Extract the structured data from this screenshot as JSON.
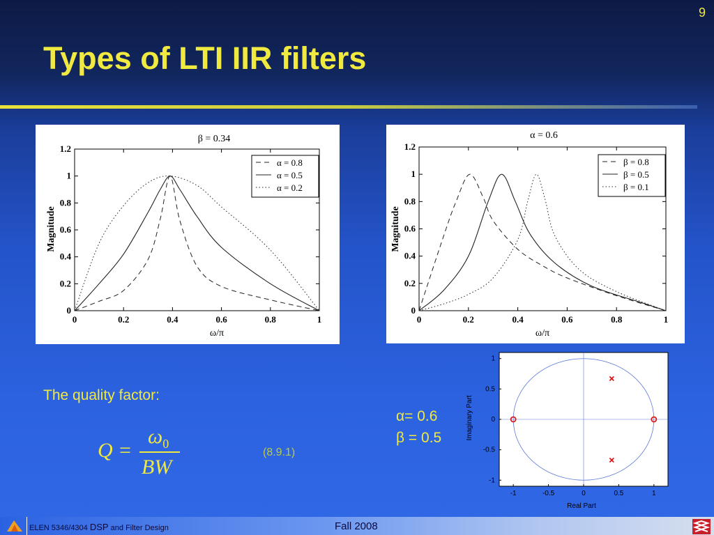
{
  "slide_number": "9",
  "title": "Types of LTI IIR filters",
  "quality_factor_label": "The quality factor:",
  "equation": {
    "lhs": "Q =",
    "numerator": "ω",
    "numerator_sub": "0",
    "denominator": "BW",
    "number": "(8.9.1)"
  },
  "params": {
    "alpha": "α= 0.6",
    "beta": "β = 0.5"
  },
  "footer": {
    "course": "ELEN 5346/4304",
    "dsp": "DSP",
    "rest": "and Filter Design",
    "term": "Fall 2008"
  },
  "colors": {
    "title": "#f0e940",
    "equation_number": "#b9cc3c",
    "pole_zero_marker": "#d81b1b",
    "unit_circle": "#5a78d8"
  },
  "chart_data": [
    {
      "type": "line",
      "title": "β = 0.34",
      "xlabel": "ω/π",
      "ylabel": "Magnitude",
      "xlim": [
        0,
        1
      ],
      "ylim": [
        0,
        1.2
      ],
      "xticks": [
        "0",
        "0.2",
        "0.4",
        "0.6",
        "0.8",
        "1"
      ],
      "yticks": [
        "0",
        "0.2",
        "0.4",
        "0.6",
        "0.8",
        "1",
        "1.2"
      ],
      "legend_position": "top-right",
      "grid": false,
      "series": [
        {
          "name": "α = 0.8",
          "style": "dashed",
          "peak_x": 0.39,
          "x": [
            0,
            0.1,
            0.2,
            0.3,
            0.35,
            0.39,
            0.43,
            0.5,
            0.6,
            0.8,
            1
          ],
          "y": [
            0,
            0.07,
            0.15,
            0.38,
            0.68,
            1.0,
            0.67,
            0.33,
            0.18,
            0.08,
            0
          ]
        },
        {
          "name": "α = 0.5",
          "style": "solid",
          "peak_x": 0.39,
          "x": [
            0,
            0.1,
            0.2,
            0.3,
            0.35,
            0.39,
            0.43,
            0.5,
            0.6,
            0.8,
            1
          ],
          "y": [
            0,
            0.2,
            0.42,
            0.73,
            0.9,
            1.0,
            0.9,
            0.7,
            0.47,
            0.2,
            0
          ]
        },
        {
          "name": "α = 0.2",
          "style": "dotted",
          "peak_x": 0.39,
          "x": [
            0,
            0.1,
            0.2,
            0.3,
            0.39,
            0.5,
            0.6,
            0.8,
            1
          ],
          "y": [
            0,
            0.5,
            0.78,
            0.95,
            1.0,
            0.93,
            0.77,
            0.45,
            0
          ]
        }
      ]
    },
    {
      "type": "line",
      "title": "α = 0.6",
      "xlabel": "ω/π",
      "ylabel": "Magnitude",
      "xlim": [
        0,
        1
      ],
      "ylim": [
        0,
        1.2
      ],
      "xticks": [
        "0",
        "0.2",
        "0.4",
        "0.6",
        "0.8",
        "1"
      ],
      "yticks": [
        "0",
        "0.2",
        "0.4",
        "0.6",
        "0.8",
        "1",
        "1.2"
      ],
      "legend_position": "top-right",
      "grid": false,
      "series": [
        {
          "name": "β = 0.8",
          "style": "dashed",
          "peak_x": 0.205,
          "x": [
            0,
            0.1,
            0.15,
            0.205,
            0.26,
            0.3,
            0.4,
            0.5,
            0.6,
            0.8,
            1
          ],
          "y": [
            0,
            0.55,
            0.8,
            1.0,
            0.83,
            0.66,
            0.45,
            0.33,
            0.24,
            0.11,
            0
          ]
        },
        {
          "name": "β = 0.5",
          "style": "solid",
          "peak_x": 0.335,
          "x": [
            0,
            0.1,
            0.2,
            0.28,
            0.335,
            0.39,
            0.45,
            0.55,
            0.7,
            0.9,
            1
          ],
          "y": [
            0,
            0.15,
            0.4,
            0.8,
            1.0,
            0.8,
            0.56,
            0.35,
            0.18,
            0.06,
            0
          ]
        },
        {
          "name": "β = 0.1",
          "style": "dotted",
          "peak_x": 0.475,
          "x": [
            0,
            0.1,
            0.2,
            0.3,
            0.4,
            0.44,
            0.475,
            0.51,
            0.55,
            0.65,
            0.8,
            1
          ],
          "y": [
            0,
            0.05,
            0.12,
            0.24,
            0.52,
            0.8,
            1.0,
            0.82,
            0.55,
            0.3,
            0.14,
            0
          ]
        }
      ]
    },
    {
      "type": "scatter",
      "title": "",
      "xlabel": "Real Part",
      "ylabel": "Imaginary Part",
      "xlim": [
        -1.2,
        1.2
      ],
      "ylim": [
        -1.1,
        1.1
      ],
      "xticks": [
        "-1",
        "-0.5",
        "0",
        "0.5",
        "1"
      ],
      "yticks": [
        "-1",
        "-0.5",
        "0",
        "0.5",
        "1"
      ],
      "unit_circle": true,
      "zeros": [
        {
          "x": -1,
          "y": 0
        },
        {
          "x": 1,
          "y": 0
        }
      ],
      "poles": [
        {
          "x": 0.4,
          "y": 0.67
        },
        {
          "x": 0.4,
          "y": -0.67
        }
      ]
    }
  ]
}
